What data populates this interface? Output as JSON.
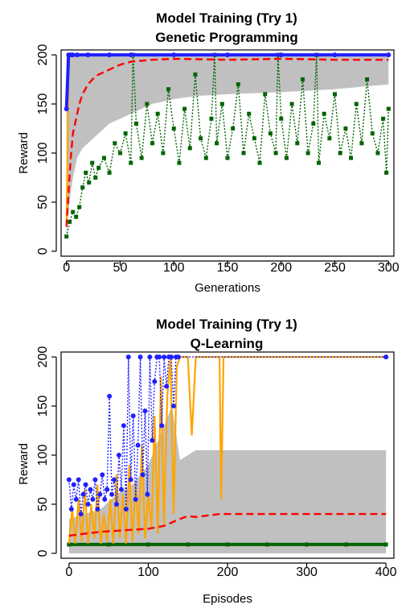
{
  "charts": [
    {
      "id": "top",
      "title": "Model Training (Try 1)",
      "subtitle": "Genetic Programming",
      "xlabel": "Generations",
      "ylabel": "Reward"
    },
    {
      "id": "bottom",
      "title": "Model Training (Try 1)",
      "subtitle": "Q-Learning",
      "xlabel": "Episodes",
      "ylabel": "Reward"
    }
  ],
  "chart_data": [
    {
      "type": "line",
      "title": "Model Training (Try 1)",
      "subtitle": "Genetic Programming",
      "xlabel": "Generations",
      "ylabel": "Reward",
      "xlim": [
        -5,
        305
      ],
      "ylim": [
        -5,
        205
      ],
      "xticks": [
        0,
        50,
        100,
        150,
        200,
        250,
        300
      ],
      "yticks": [
        0,
        50,
        100,
        150,
        200
      ],
      "grid": false,
      "colors": {
        "band": "#c0c0c0",
        "mean": "#ff0000",
        "max": "#2020ff",
        "best": "#ffa500",
        "sample": "#006400"
      },
      "band": {
        "x": [
          0,
          2,
          4,
          6,
          8,
          10,
          15,
          20,
          25,
          30,
          40,
          50,
          60,
          70,
          80,
          100,
          120,
          150,
          200,
          250,
          300
        ],
        "lower": [
          15,
          40,
          60,
          75,
          85,
          95,
          105,
          110,
          115,
          120,
          130,
          135,
          140,
          145,
          150,
          155,
          158,
          160,
          162,
          165,
          170
        ],
        "upper": [
          200,
          200,
          200,
          200,
          200,
          200,
          200,
          200,
          200,
          200,
          200,
          200,
          200,
          200,
          200,
          200,
          200,
          200,
          200,
          200,
          200
        ]
      },
      "series": [
        {
          "role": "max",
          "style": "solid-thick-circles",
          "x": [
            0,
            2,
            4,
            6,
            10,
            20,
            40,
            60,
            100,
            150,
            200,
            250,
            300
          ],
          "values": [
            145,
            200,
            200,
            200,
            200,
            200,
            200,
            200,
            200,
            200,
            200,
            200,
            200
          ]
        },
        {
          "role": "best",
          "style": "solid",
          "x": [
            0,
            1,
            2,
            3,
            300
          ],
          "values": [
            25,
            100,
            200,
            200,
            200
          ]
        },
        {
          "role": "mean",
          "style": "dashed",
          "x": [
            0,
            2,
            4,
            6,
            8,
            10,
            12,
            15,
            20,
            25,
            30,
            40,
            50,
            60,
            80,
            100,
            150,
            200,
            250,
            300
          ],
          "values": [
            25,
            60,
            95,
            120,
            130,
            140,
            150,
            160,
            170,
            176,
            180,
            185,
            190,
            193,
            195,
            196,
            195,
            196,
            195,
            195
          ]
        },
        {
          "role": "sample",
          "style": "dotted-squares",
          "x": [
            0,
            3,
            6,
            9,
            12,
            15,
            18,
            21,
            24,
            27,
            30,
            35,
            40,
            45,
            50,
            55,
            60,
            62,
            65,
            70,
            75,
            80,
            85,
            90,
            95,
            100,
            105,
            110,
            115,
            120,
            125,
            130,
            135,
            138,
            140,
            145,
            150,
            155,
            160,
            165,
            170,
            175,
            180,
            185,
            190,
            195,
            197,
            200,
            205,
            210,
            215,
            220,
            225,
            230,
            233,
            235,
            240,
            245,
            250,
            255,
            260,
            265,
            270,
            275,
            280,
            285,
            290,
            295,
            298,
            300
          ],
          "values": [
            15,
            30,
            40,
            35,
            45,
            65,
            80,
            70,
            90,
            75,
            85,
            95,
            80,
            110,
            100,
            120,
            90,
            200,
            130,
            95,
            150,
            110,
            140,
            100,
            165,
            125,
            90,
            145,
            105,
            180,
            115,
            95,
            135,
            200,
            110,
            150,
            95,
            125,
            170,
            100,
            140,
            115,
            90,
            160,
            120,
            100,
            200,
            135,
            95,
            150,
            110,
            175,
            100,
            130,
            200,
            90,
            140,
            115,
            160,
            100,
            125,
            95,
            150,
            110,
            175,
            120,
            100,
            135,
            80,
            145
          ]
        }
      ]
    },
    {
      "type": "line",
      "title": "Model Training (Try 1)",
      "subtitle": "Q-Learning",
      "xlabel": "Episodes",
      "ylabel": "Reward",
      "xlim": [
        -10,
        410
      ],
      "ylim": [
        -5,
        205
      ],
      "xticks": [
        0,
        100,
        200,
        300,
        400
      ],
      "yticks": [
        0,
        50,
        100,
        150,
        200
      ],
      "grid": false,
      "colors": {
        "band": "#c0c0c0",
        "mean": "#ff0000",
        "max": "#2020ff",
        "best": "#ffa500",
        "sample": "#006400"
      },
      "band": {
        "x": [
          0,
          20,
          40,
          60,
          80,
          100,
          110,
          120,
          130,
          140,
          150,
          160,
          180,
          200,
          250,
          300,
          350,
          400
        ],
        "lower": [
          0,
          0,
          0,
          0,
          0,
          0,
          0,
          0,
          0,
          0,
          0,
          0,
          0,
          0,
          0,
          0,
          0,
          0
        ],
        "upper": [
          35,
          40,
          45,
          60,
          70,
          90,
          110,
          130,
          150,
          95,
          100,
          105,
          105,
          105,
          105,
          105,
          105,
          105
        ]
      },
      "series": [
        {
          "role": "max",
          "style": "dotted-circles",
          "x": [
            0,
            3,
            6,
            9,
            12,
            15,
            18,
            21,
            24,
            27,
            30,
            33,
            36,
            39,
            42,
            45,
            48,
            51,
            54,
            57,
            60,
            63,
            66,
            69,
            72,
            75,
            78,
            81,
            84,
            87,
            90,
            93,
            96,
            99,
            102,
            105,
            108,
            111,
            114,
            117,
            120,
            123,
            126,
            129,
            132,
            135,
            138,
            400
          ],
          "values": [
            75,
            45,
            70,
            55,
            75,
            40,
            60,
            70,
            50,
            65,
            55,
            75,
            45,
            60,
            80,
            55,
            65,
            160,
            60,
            75,
            50,
            100,
            65,
            130,
            45,
            200,
            75,
            140,
            55,
            110,
            200,
            80,
            145,
            60,
            200,
            115,
            175,
            200,
            200,
            130,
            200,
            170,
            200,
            200,
            150,
            200,
            200,
            200
          ]
        },
        {
          "role": "best",
          "style": "solid",
          "x": [
            0,
            4,
            8,
            12,
            16,
            20,
            24,
            28,
            32,
            36,
            40,
            44,
            48,
            52,
            56,
            60,
            64,
            68,
            72,
            76,
            80,
            84,
            88,
            92,
            96,
            100,
            104,
            108,
            112,
            116,
            120,
            124,
            128,
            132,
            136,
            140,
            145,
            150,
            155,
            160,
            170,
            180,
            190,
            192,
            195,
            400
          ],
          "values": [
            10,
            45,
            10,
            55,
            12,
            65,
            10,
            50,
            15,
            70,
            10,
            40,
            12,
            55,
            10,
            80,
            15,
            60,
            10,
            90,
            12,
            70,
            20,
            110,
            15,
            60,
            25,
            140,
            20,
            180,
            30,
            160,
            200,
            40,
            190,
            200,
            200,
            200,
            120,
            200,
            200,
            200,
            200,
            55,
            200,
            200
          ]
        },
        {
          "role": "mean",
          "style": "dashed",
          "x": [
            0,
            20,
            40,
            60,
            80,
            100,
            120,
            140,
            150,
            160,
            170,
            180,
            190,
            200,
            250,
            300,
            350,
            400
          ],
          "values": [
            18,
            20,
            22,
            23,
            24,
            25,
            28,
            35,
            38,
            37,
            38,
            39,
            40,
            40,
            40,
            40,
            40,
            40
          ]
        },
        {
          "role": "sample",
          "style": "solid-thick-squares",
          "x": [
            0,
            50,
            100,
            150,
            200,
            250,
            300,
            350,
            400
          ],
          "values": [
            9,
            9,
            9,
            9,
            9,
            9,
            9,
            9,
            9
          ]
        }
      ]
    }
  ]
}
